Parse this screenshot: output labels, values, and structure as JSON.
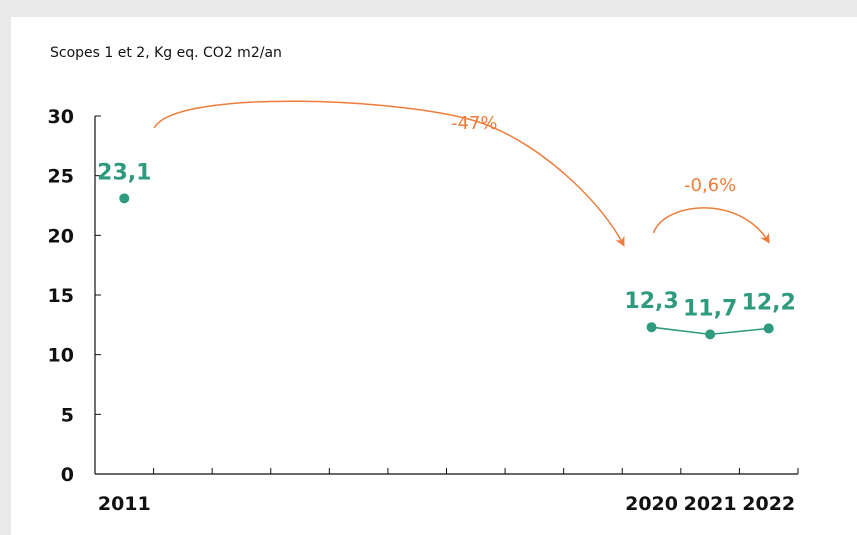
{
  "chart_data": {
    "type": "line",
    "subtitle": "Scopes 1 et 2, Kg eq. CO2 m2/an",
    "x_ticks": [
      "2011",
      "2020",
      "2021",
      "2022"
    ],
    "y_ticks": [
      "0",
      "5",
      "10",
      "15",
      "20",
      "25",
      "30"
    ],
    "ylim": [
      0,
      30
    ],
    "xlim": [
      2010.5,
      2022.5
    ],
    "series": [
      {
        "values": [
          {
            "x": 2011,
            "y": 23.1,
            "label": "23,1"
          },
          {
            "x": 2020,
            "y": 12.3,
            "label": "12,3"
          },
          {
            "x": 2021,
            "y": 11.7,
            "label": "11,7"
          },
          {
            "x": 2022,
            "y": 12.2,
            "label": "12,2"
          }
        ],
        "connect_from": 2020
      }
    ],
    "annotations": [
      {
        "text": "-47%",
        "from": 2011,
        "to": 2020
      },
      {
        "text": "-0,6%",
        "from": 2020,
        "to": 2022
      }
    ],
    "colors": {
      "series": "#2e9a7e",
      "annotation": "#ee7d3b",
      "axis": "#111111"
    },
    "grid": false,
    "legend": "none"
  }
}
